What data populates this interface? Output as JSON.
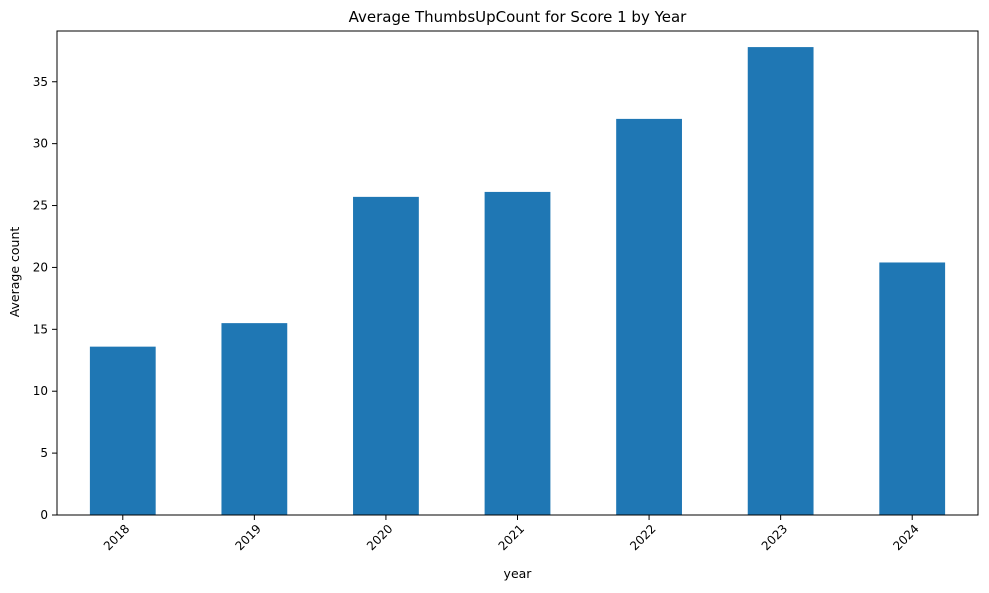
{
  "chart_data": {
    "type": "bar",
    "title": "Average ThumbsUpCount for Score 1 by Year",
    "xlabel": "year",
    "ylabel": "Average count",
    "categories": [
      "2018",
      "2019",
      "2020",
      "2021",
      "2022",
      "2023",
      "2024"
    ],
    "values": [
      13.6,
      15.5,
      25.7,
      26.1,
      32.0,
      37.8,
      20.4
    ],
    "ylim": [
      0,
      39.1
    ],
    "yticks": [
      0,
      5,
      10,
      15,
      20,
      25,
      30,
      35
    ],
    "xtick_rotation": 45,
    "grid": false,
    "legend": "none",
    "bar_color": "#1f77b4"
  }
}
